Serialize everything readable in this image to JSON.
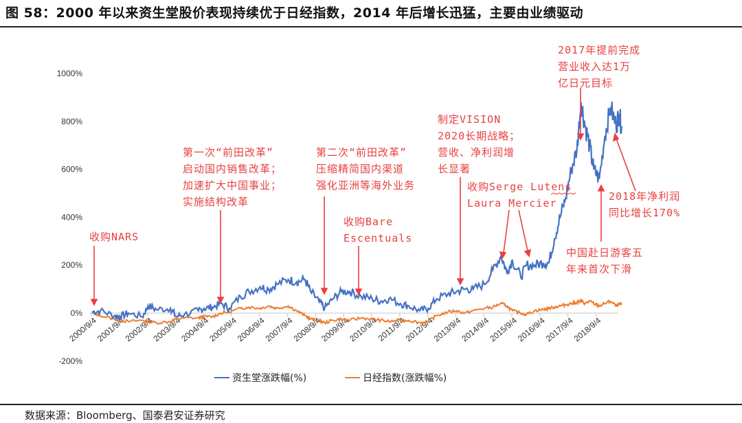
{
  "header": {
    "title": "图 58：2000 年以来资生堂股价表现持续优于日经指数，2014 年后增长迅猛，主要由业绩驱动"
  },
  "footer": {
    "source": "数据来源：Bloomberg、国泰君安证券研究"
  },
  "colors": {
    "shiseido": "#4472c4",
    "nikkei": "#ed7d31",
    "annotation": "#e8403f",
    "gridline": "#d9d9d9"
  },
  "legend": {
    "shiseido": "资生堂涨跌幅(%)",
    "nikkei": "日经指数(涨跌幅%)"
  },
  "annotations": {
    "nars": "收购NARS",
    "maeda1": [
      "第一次“前田改革”",
      "启动国内销售改革；",
      "加速扩大中国事业；",
      "实施结构改革"
    ],
    "maeda2": [
      "第二次“前田改革”",
      "压缩精简国内渠道",
      "强化亚洲等海外业务"
    ],
    "bare": [
      "收购Bare",
      "Escentuals"
    ],
    "vision": [
      "制定VISION",
      "2020长期战略；",
      "营收、净利润增",
      "长显著"
    ],
    "serge": [
      "收购Serge Lutens",
      "Laura Mercier"
    ],
    "target2017": [
      "2017年提前完成",
      "营业收入达1万",
      "亿日元目标"
    ],
    "profit2018": [
      "2018年净利润",
      "同比增长170%"
    ],
    "china": [
      "中国赴日游客五",
      "年来首次下滑"
    ]
  },
  "chart_data": {
    "type": "line",
    "title": "2000年以来资生堂股价表现持续优于日经指数",
    "xlabel": "",
    "ylabel": "",
    "ylim": [
      -200,
      1000
    ],
    "yticks": [
      "1000%",
      "800%",
      "600%",
      "400%",
      "200%",
      "0%",
      "-200%"
    ],
    "xticks": [
      "2000/9/4",
      "2001/9/4",
      "2002/9/4",
      "2003/9/4",
      "2004/9/4",
      "2005/9/4",
      "2006/9/4",
      "2007/9/4",
      "2008/9/4",
      "2009/9/4",
      "2010/9/4",
      "2011/9/4",
      "2012/9/4",
      "2013/9/4",
      "2014/9/4",
      "2015/9/4",
      "2016/9/4",
      "2017/9/4",
      "2018/9/4"
    ],
    "grid": false,
    "legend_position": "bottom",
    "x": [
      2000.7,
      2001.0,
      2001.5,
      2001.7,
      2002.0,
      2002.5,
      2002.7,
      2003.0,
      2003.5,
      2003.7,
      2004.0,
      2004.5,
      2004.7,
      2005.0,
      2005.3,
      2005.6,
      2006.0,
      2006.3,
      2006.7,
      2007.0,
      2007.3,
      2007.7,
      2008.0,
      2008.3,
      2008.5,
      2008.8,
      2009.0,
      2009.3,
      2009.6,
      2009.9,
      2010.3,
      2010.7,
      2011.0,
      2011.3,
      2011.7,
      2012.0,
      2012.4,
      2012.7,
      2013.0,
      2013.4,
      2013.7,
      2014.0,
      2014.3,
      2014.7,
      2015.0,
      2015.3,
      2015.5,
      2015.7,
      2016.0,
      2016.2,
      2016.5,
      2016.8,
      2017.0,
      2017.2,
      2017.4,
      2017.6,
      2017.8,
      2018.0,
      2018.15,
      2018.3,
      2018.45,
      2018.6,
      2018.8,
      2019.0,
      2019.2,
      2019.4,
      2019.5,
      2019.6
    ],
    "series": [
      {
        "name": "资生堂涨跌幅(%)",
        "values": [
          5,
          10,
          -10,
          -15,
          0,
          -15,
          30,
          15,
          20,
          -15,
          -5,
          10,
          20,
          25,
          40,
          20,
          70,
          90,
          110,
          100,
          120,
          140,
          130,
          140,
          90,
          50,
          20,
          60,
          90,
          90,
          70,
          60,
          50,
          60,
          40,
          30,
          10,
          20,
          60,
          80,
          90,
          100,
          100,
          120,
          180,
          240,
          170,
          220,
          150,
          200,
          200,
          210,
          210,
          310,
          400,
          480,
          600,
          680,
          880,
          780,
          700,
          600,
          560,
          740,
          860,
          780,
          830,
          780
        ]
      },
      {
        "name": "日经指数(涨跌幅%)",
        "values": [
          0,
          -10,
          -25,
          -30,
          -35,
          -30,
          -35,
          -40,
          -35,
          -25,
          -20,
          -20,
          -15,
          -15,
          0,
          5,
          20,
          25,
          20,
          30,
          20,
          30,
          10,
          -10,
          -25,
          -30,
          -40,
          -30,
          -25,
          -30,
          -20,
          -25,
          -30,
          -35,
          -30,
          -30,
          -40,
          -35,
          -10,
          5,
          10,
          0,
          10,
          20,
          25,
          40,
          30,
          10,
          0,
          -5,
          10,
          15,
          20,
          25,
          30,
          35,
          40,
          45,
          50,
          40,
          50,
          40,
          30,
          40,
          50,
          30,
          35,
          40
        ]
      }
    ]
  }
}
